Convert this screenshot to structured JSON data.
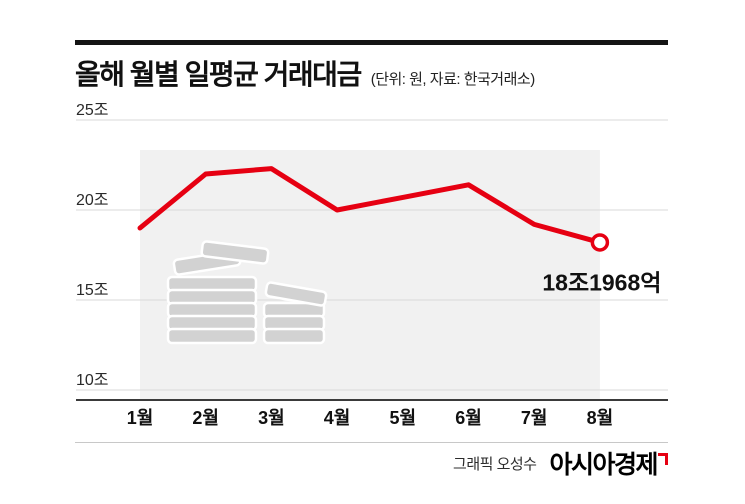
{
  "header": {
    "title": "올해 월별 일평균 거래대금",
    "subtitle": "(단위: 원, 자료: 한국거래소)"
  },
  "chart_data": {
    "type": "line",
    "title": "올해 월별 일평균 거래대금",
    "unit_note": "단위: 원, 자료: 한국거래소",
    "categories": [
      "1월",
      "2월",
      "3월",
      "4월",
      "5월",
      "6월",
      "7월",
      "8월"
    ],
    "values": [
      19.0,
      22.0,
      22.3,
      20.0,
      20.7,
      21.4,
      19.2,
      18.1968
    ],
    "value_unit": "조 원",
    "y_ticks": [
      {
        "label": "25조",
        "value": 25
      },
      {
        "label": "20조",
        "value": 20
      },
      {
        "label": "15조",
        "value": 15
      },
      {
        "label": "10조",
        "value": 10
      }
    ],
    "ylim": [
      10,
      25
    ],
    "grid": "horizontal",
    "legend": "none",
    "line_color": "#e60012",
    "plot_area_color": "#f1f1f1",
    "last_point_label": "18조1968억",
    "last_point_marker": "open-circle",
    "watermark_icon": "money-stack-icon"
  },
  "footer": {
    "credit": "그래픽 오성수",
    "publisher": "아시아경제",
    "logo_mark_color": "#e60012"
  }
}
